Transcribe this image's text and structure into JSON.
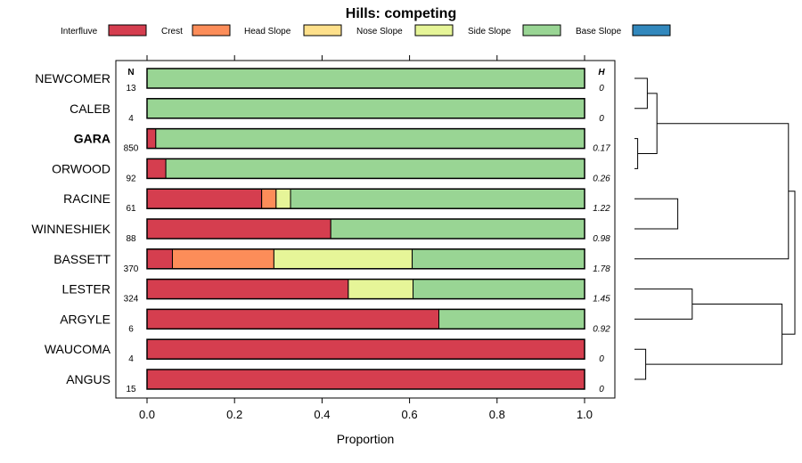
{
  "chart_data": {
    "type": "bar",
    "orientation": "horizontal",
    "stacked": true,
    "title": "Hills: competing",
    "xlabel": "Proportion",
    "xlim": [
      0,
      1
    ],
    "xticks": [
      "0.0",
      "0.2",
      "0.4",
      "0.6",
      "0.8",
      "1.0"
    ],
    "n_header": "N",
    "h_header": "H",
    "legend": [
      {
        "name": "Interfluve",
        "color": "#D53E4F"
      },
      {
        "name": "Crest",
        "color": "#FC8D59"
      },
      {
        "name": "Head Slope",
        "color": "#FEE08B"
      },
      {
        "name": "Nose Slope",
        "color": "#E6F598"
      },
      {
        "name": "Side Slope",
        "color": "#99D594"
      },
      {
        "name": "Base Slope",
        "color": "#3288BD"
      }
    ],
    "rows": [
      {
        "name": "NEWCOMER",
        "n": "13",
        "h": "0",
        "bold": false,
        "values": [
          0,
          0,
          0,
          0,
          1.0,
          0
        ]
      },
      {
        "name": "CALEB",
        "n": "4",
        "h": "0",
        "bold": false,
        "values": [
          0,
          0,
          0,
          0,
          1.0,
          0
        ]
      },
      {
        "name": "GARA",
        "n": "850",
        "h": "0.17",
        "bold": true,
        "values": [
          0.02,
          0,
          0,
          0,
          0.98,
          0
        ]
      },
      {
        "name": "ORWOOD",
        "n": "92",
        "h": "0.26",
        "bold": false,
        "values": [
          0.043,
          0,
          0,
          0,
          0.957,
          0
        ]
      },
      {
        "name": "RACINE",
        "n": "61",
        "h": "1.22",
        "bold": false,
        "values": [
          0.262,
          0.033,
          0,
          0.033,
          0.672,
          0
        ]
      },
      {
        "name": "WINNESHIEK",
        "n": "88",
        "h": "0.98",
        "bold": false,
        "values": [
          0.42,
          0,
          0,
          0,
          0.58,
          0
        ]
      },
      {
        "name": "BASSETT",
        "n": "370",
        "h": "1.78",
        "bold": false,
        "values": [
          0.058,
          0.232,
          0,
          0.316,
          0.394,
          0
        ]
      },
      {
        "name": "LESTER",
        "n": "324",
        "h": "1.45",
        "bold": false,
        "values": [
          0.46,
          0,
          0,
          0.148,
          0.392,
          0
        ]
      },
      {
        "name": "ARGYLE",
        "n": "6",
        "h": "0.92",
        "bold": false,
        "values": [
          0.667,
          0,
          0,
          0,
          0.333,
          0
        ]
      },
      {
        "name": "WAUCOMA",
        "n": "4",
        "h": "0",
        "bold": false,
        "values": [
          1.0,
          0,
          0,
          0,
          0,
          0
        ]
      },
      {
        "name": "ANGUS",
        "n": "15",
        "h": "0",
        "bold": false,
        "values": [
          1.0,
          0,
          0,
          0,
          0,
          0
        ]
      }
    ],
    "dendrogram_merges": [
      [
        0,
        1,
        0.08
      ],
      [
        2,
        3,
        0.02
      ],
      [
        11,
        12,
        0.14
      ],
      [
        4,
        5,
        0.27
      ],
      [
        13,
        6,
        0.96
      ],
      [
        7,
        8,
        0.36
      ],
      [
        9,
        10,
        0.07
      ],
      [
        16,
        17,
        0.92
      ],
      [
        15,
        18,
        1.0
      ]
    ]
  }
}
